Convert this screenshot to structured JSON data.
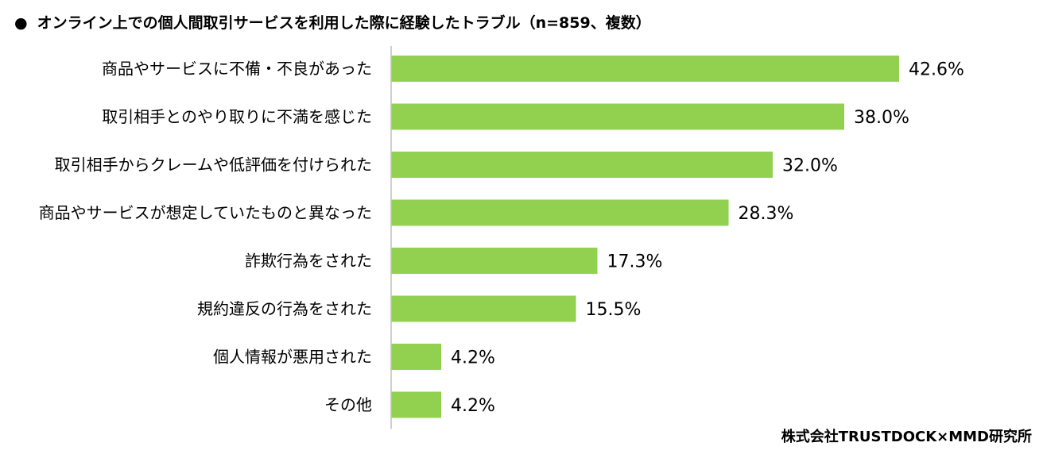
{
  "title": {
    "bullet": "●",
    "text": "オンライン上での個人間取引サービスを利用した際に経験したトラブル（n=859、複数）"
  },
  "source": "株式会社TRUSTDOCK×MMD研究所",
  "chart_data": {
    "type": "bar",
    "orientation": "horizontal",
    "title": "オンライン上での個人間取引サービスを利用した際に経験したトラブル（n=859、複数）",
    "categories": [
      "商品やサービスに不備・不良があった",
      "取引相手とのやり取りに不満を感じた",
      "取引相手からクレームや低評価を付けられた",
      "商品やサービスが想定していたものと異なった",
      "詐欺行為をされた",
      "規約違反の行為をされた",
      "個人情報が悪用された",
      "その他"
    ],
    "values": [
      42.6,
      38.0,
      32.0,
      28.3,
      17.3,
      15.5,
      4.2,
      4.2
    ],
    "value_labels": [
      "42.6%",
      "38.0%",
      "32.0%",
      "28.3%",
      "17.3%",
      "15.5%",
      "4.2%",
      "4.2%"
    ],
    "unit": "%",
    "xlim": [
      0,
      50
    ],
    "xlabel": "",
    "ylabel": "",
    "grid": false,
    "bar_color": "#92d050",
    "axis_color": "#bfbfbf"
  }
}
